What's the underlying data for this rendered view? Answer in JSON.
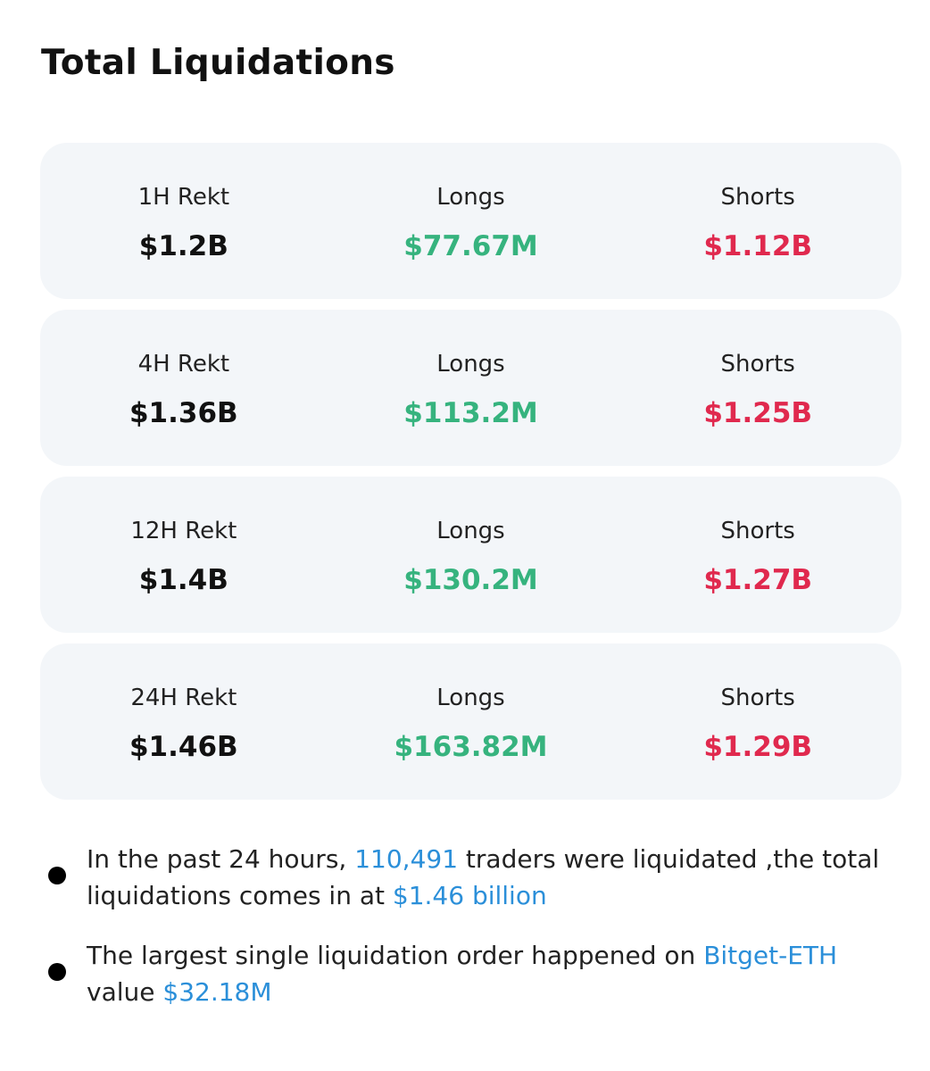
{
  "header": {
    "title": "Total Liquidations"
  },
  "cards": [
    {
      "label": "1H Rekt",
      "total": "$1.2B",
      "longs_label": "Longs",
      "longs": "$77.67M",
      "shorts_label": "Shorts",
      "shorts": "$1.12B"
    },
    {
      "label": "4H Rekt",
      "total": "$1.36B",
      "longs_label": "Longs",
      "longs": "$113.2M",
      "shorts_label": "Shorts",
      "shorts": "$1.25B"
    },
    {
      "label": "12H Rekt",
      "total": "$1.4B",
      "longs_label": "Longs",
      "longs": "$130.2M",
      "shorts_label": "Shorts",
      "shorts": "$1.27B"
    },
    {
      "label": "24H Rekt",
      "total": "$1.46B",
      "longs_label": "Longs",
      "longs": "$163.82M",
      "shorts_label": "Shorts",
      "shorts": "$1.29B"
    }
  ],
  "bullets": [
    [
      {
        "text": "In the past 24 hours, "
      },
      {
        "text": "110,491",
        "color": "#2b8fd9"
      },
      {
        "text": " traders were liquidated ,the total liquidations comes in at "
      },
      {
        "text": "$1.46 billion",
        "color": "#2b8fd9"
      }
    ],
    [
      {
        "text": "The largest single liquidation order happened on "
      },
      {
        "text": "Bitget-ETH",
        "color": "#2b8fd9"
      },
      {
        "text": " value "
      },
      {
        "text": "$32.18M",
        "color": "#2b8fd9"
      }
    ]
  ]
}
